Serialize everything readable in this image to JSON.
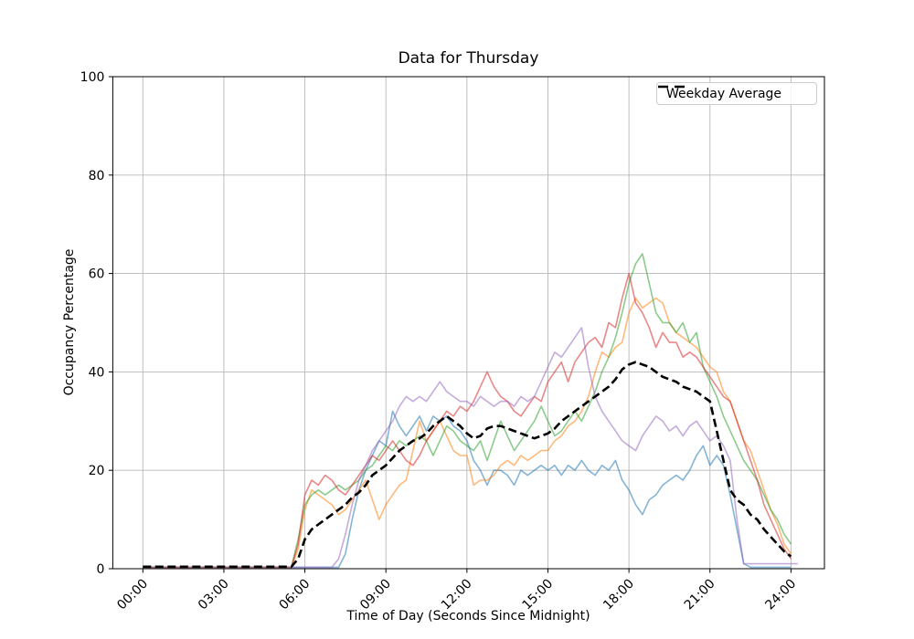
{
  "chart_data": {
    "type": "line",
    "title": "Data for Thursday",
    "xlabel": "Time of Day (Seconds Since Midnight)",
    "ylabel": "Occupancy Percentage",
    "x_tick_labels": [
      "00:00",
      "03:00",
      "06:00",
      "09:00",
      "12:00",
      "15:00",
      "18:00",
      "21:00",
      "24:00"
    ],
    "x_tick_hours": [
      0,
      3,
      6,
      9,
      12,
      15,
      18,
      21,
      24
    ],
    "y_tick_labels": [
      "0",
      "20",
      "40",
      "60",
      "80",
      "100"
    ],
    "y_ticks": [
      0,
      20,
      40,
      60,
      80,
      100
    ],
    "ylim": [
      0,
      100
    ],
    "xlim_hours": [
      -1.2,
      25.2
    ],
    "grid": true,
    "grid_color": "#b8b8b8",
    "axis_color": "#000000",
    "background_color": "#ffffff",
    "legend": {
      "position": "upper right",
      "entries": [
        {
          "label": "Weekday Average",
          "style": "dashed",
          "color": "#000000"
        }
      ]
    },
    "x_start_hour": 0,
    "x_step_hours": 0.25,
    "series": [
      {
        "name": "day-line-1",
        "color": "#1f77b4",
        "dashed": false,
        "values": [
          0.3,
          0.3,
          0.3,
          0.3,
          0.3,
          0.3,
          0.3,
          0.3,
          0.3,
          0.3,
          0.3,
          0.3,
          0.3,
          0.3,
          0.3,
          0.3,
          0.3,
          0.3,
          0.3,
          0.3,
          0.3,
          0.3,
          0.3,
          0.3,
          0.3,
          0.3,
          0.3,
          0.3,
          0.3,
          0.3,
          3,
          10,
          16,
          20,
          23,
          26,
          25,
          32,
          29,
          27,
          29,
          31,
          28,
          31,
          30,
          31,
          29,
          28,
          26,
          22,
          20,
          17,
          20,
          20,
          19,
          17,
          20,
          19,
          20,
          21,
          20,
          21,
          19,
          21,
          20,
          22,
          20,
          19,
          21,
          20,
          22,
          18,
          16,
          13,
          11,
          14,
          15,
          17,
          18,
          19,
          18,
          20,
          23,
          25,
          21,
          23,
          21,
          15,
          8,
          1,
          0.3,
          0.3,
          0.3,
          0.3,
          0.3,
          0.3,
          0.3
        ]
      },
      {
        "name": "day-line-2",
        "color": "#ff7f0e",
        "dashed": false,
        "values": [
          0.3,
          0.3,
          0.3,
          0.3,
          0.3,
          0.3,
          0.3,
          0.3,
          0.3,
          0.3,
          0.3,
          0.3,
          0.3,
          0.3,
          0.3,
          0.3,
          0.3,
          0.3,
          0.3,
          0.3,
          0.3,
          0.3,
          0.3,
          4,
          12,
          16,
          15,
          14,
          13,
          11,
          12,
          14,
          16,
          18,
          14,
          10,
          13,
          15,
          17,
          18,
          24,
          30,
          26,
          28,
          30,
          27,
          24,
          23,
          23,
          17,
          18,
          18,
          19,
          21,
          22,
          21,
          23,
          22,
          23,
          24,
          24,
          26,
          27,
          29,
          30,
          32,
          35,
          40,
          44,
          43,
          45,
          46,
          52,
          55,
          53,
          54,
          55,
          54,
          50,
          48,
          47,
          46,
          45,
          43,
          41,
          40,
          36,
          34,
          30,
          26,
          24,
          20,
          16,
          12,
          9,
          5,
          3
        ]
      },
      {
        "name": "day-line-3",
        "color": "#2ca02c",
        "dashed": false,
        "values": [
          0.3,
          0.3,
          0.3,
          0.3,
          0.3,
          0.3,
          0.3,
          0.3,
          0.3,
          0.3,
          0.3,
          0.3,
          0.3,
          0.3,
          0.3,
          0.3,
          0.3,
          0.3,
          0.3,
          0.3,
          0.3,
          0.3,
          0.3,
          6,
          13,
          15,
          16,
          15,
          16,
          17,
          16,
          17,
          18,
          20,
          21,
          23,
          25,
          24,
          26,
          25,
          26,
          27,
          26,
          23,
          26,
          29,
          28,
          26,
          25,
          24,
          26,
          22,
          26,
          30,
          27,
          24,
          26,
          28,
          30,
          33,
          30,
          27,
          28,
          30,
          32,
          30,
          33,
          36,
          40,
          43,
          47,
          52,
          58,
          62,
          64,
          58,
          52,
          50,
          50,
          48,
          50,
          46,
          48,
          41,
          38,
          35,
          31,
          28,
          25,
          22,
          20,
          18,
          15,
          12,
          10,
          7,
          5
        ]
      },
      {
        "name": "day-line-4",
        "color": "#d62728",
        "dashed": false,
        "values": [
          0.3,
          0.3,
          0.3,
          0.3,
          0.3,
          0.3,
          0.3,
          0.3,
          0.3,
          0.3,
          0.3,
          0.3,
          0.3,
          0.3,
          0.3,
          0.3,
          0.3,
          0.3,
          0.3,
          0.3,
          0.3,
          0.3,
          0.3,
          5,
          15,
          18,
          17,
          19,
          18,
          16,
          15,
          17,
          19,
          21,
          23,
          22,
          24,
          26,
          24,
          22,
          21,
          23,
          26,
          28,
          30,
          32,
          31,
          33,
          32,
          34,
          37,
          40,
          37,
          35,
          34,
          32,
          31,
          33,
          35,
          34,
          38,
          40,
          42,
          38,
          42,
          44,
          46,
          47,
          45,
          50,
          49,
          55,
          60,
          54,
          52,
          49,
          45,
          48,
          46,
          46,
          43,
          44,
          43,
          41,
          39,
          37,
          35,
          34,
          30,
          26,
          22,
          18,
          13,
          10,
          7,
          4,
          2
        ]
      },
      {
        "name": "day-line-5",
        "color": "#9467bd",
        "dashed": false,
        "values": [
          0.3,
          0.3,
          0.3,
          0.3,
          0.3,
          0.3,
          0.3,
          0.3,
          0.3,
          0.3,
          0.3,
          0.3,
          0.3,
          0.3,
          0.3,
          0.3,
          0.3,
          0.3,
          0.3,
          0.3,
          0.3,
          0.3,
          0.3,
          0.3,
          0.3,
          0.3,
          0.3,
          0.3,
          0.3,
          2,
          7,
          13,
          18,
          21,
          24,
          26,
          28,
          30,
          33,
          35,
          34,
          35,
          34,
          36,
          38,
          36,
          35,
          34,
          34,
          33,
          35,
          34,
          33,
          34,
          34,
          33,
          35,
          34,
          35,
          38,
          41,
          44,
          43,
          45,
          47,
          49,
          41,
          35,
          32,
          30,
          28,
          26,
          25,
          24,
          27,
          29,
          31,
          30,
          28,
          29,
          27,
          29,
          30,
          28,
          26,
          27,
          25,
          22,
          10,
          1,
          1,
          1,
          1,
          1,
          1,
          1,
          1,
          1
        ]
      },
      {
        "name": "weekday-average",
        "color": "#000000",
        "dashed": true,
        "values": [
          0.4,
          0.4,
          0.4,
          0.4,
          0.4,
          0.4,
          0.4,
          0.4,
          0.4,
          0.4,
          0.4,
          0.4,
          0.4,
          0.4,
          0.4,
          0.4,
          0.4,
          0.4,
          0.4,
          0.4,
          0.4,
          0.4,
          0.4,
          2,
          6,
          8,
          9,
          10,
          11,
          12,
          13,
          14.5,
          15.5,
          17,
          19,
          20,
          21,
          22.5,
          24,
          25,
          26,
          26.5,
          27.5,
          29,
          30,
          31,
          30,
          29,
          27.5,
          26.5,
          27,
          28.5,
          29,
          29,
          28.5,
          28,
          27.5,
          27,
          26.5,
          27,
          27.5,
          28.5,
          30,
          31,
          32,
          33,
          34,
          35,
          36,
          37,
          38.5,
          40.5,
          41.5,
          42,
          41.5,
          41,
          40,
          39,
          38.5,
          38,
          37,
          36.5,
          36,
          35,
          34,
          28,
          22,
          16,
          14,
          13,
          11,
          10,
          8,
          6.5,
          5,
          3.5,
          2.5
        ]
      }
    ]
  }
}
